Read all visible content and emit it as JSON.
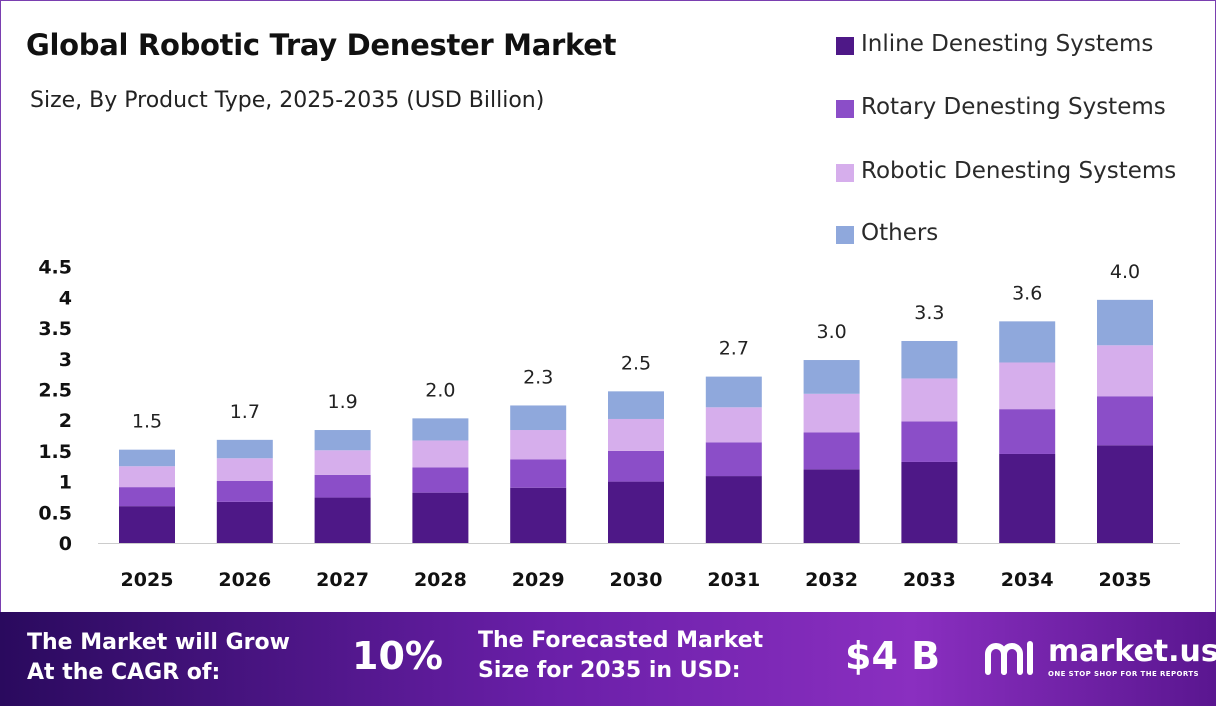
{
  "header": {
    "title": "Global Robotic Tray Denester Market",
    "subtitle": "Size, By Product Type, 2025-2035 (USD Billion)"
  },
  "legend": [
    {
      "label": "Inline Denesting Systems",
      "color": "#4e1887"
    },
    {
      "label": "Rotary Denesting Systems",
      "color": "#8b4ec8"
    },
    {
      "label": "Robotic Denesting Systems",
      "color": "#d6aeec"
    },
    {
      "label": "Others",
      "color": "#8fa8dc"
    }
  ],
  "chart_data": {
    "type": "bar",
    "stacked": true,
    "categories": [
      "2025",
      "2026",
      "2027",
      "2028",
      "2029",
      "2030",
      "2031",
      "2032",
      "2033",
      "2034",
      "2035"
    ],
    "series": [
      {
        "name": "Inline Denesting Systems",
        "color": "#4e1887",
        "values": [
          0.6,
          0.67,
          0.74,
          0.82,
          0.9,
          1.0,
          1.09,
          1.2,
          1.32,
          1.45,
          1.59
        ]
      },
      {
        "name": "Rotary Denesting Systems",
        "color": "#8b4ec8",
        "values": [
          0.31,
          0.34,
          0.37,
          0.41,
          0.46,
          0.5,
          0.55,
          0.6,
          0.66,
          0.73,
          0.8
        ]
      },
      {
        "name": "Robotic Denesting Systems",
        "color": "#d6aeec",
        "values": [
          0.34,
          0.37,
          0.4,
          0.44,
          0.48,
          0.52,
          0.57,
          0.63,
          0.7,
          0.76,
          0.83
        ]
      },
      {
        "name": "Others",
        "color": "#8fa8dc",
        "values": [
          0.27,
          0.3,
          0.33,
          0.36,
          0.4,
          0.45,
          0.5,
          0.55,
          0.61,
          0.67,
          0.74
        ]
      }
    ],
    "totals": [
      "1.5",
      "1.7",
      "1.9",
      "2.0",
      "2.3",
      "2.5",
      "2.7",
      "3.0",
      "3.3",
      "3.6",
      "4.0"
    ],
    "yticks": [
      "0",
      "0.5",
      "1",
      "1.5",
      "2",
      "2.5",
      "3",
      "3.5",
      "4",
      "4.5"
    ],
    "ylim": [
      0,
      4.5
    ],
    "grid": false,
    "legend_position": "top-right"
  },
  "footer": {
    "cagr_label_1": "The Market will Grow",
    "cagr_label_2": "At the CAGR of:",
    "cagr_value": "10%",
    "size_label_1": "The Forecasted Market",
    "size_label_2": "Size for 2035 in USD:",
    "size_value": "$4 B",
    "brand_name": "market.us",
    "brand_tagline": "ONE STOP SHOP FOR THE REPORTS"
  }
}
